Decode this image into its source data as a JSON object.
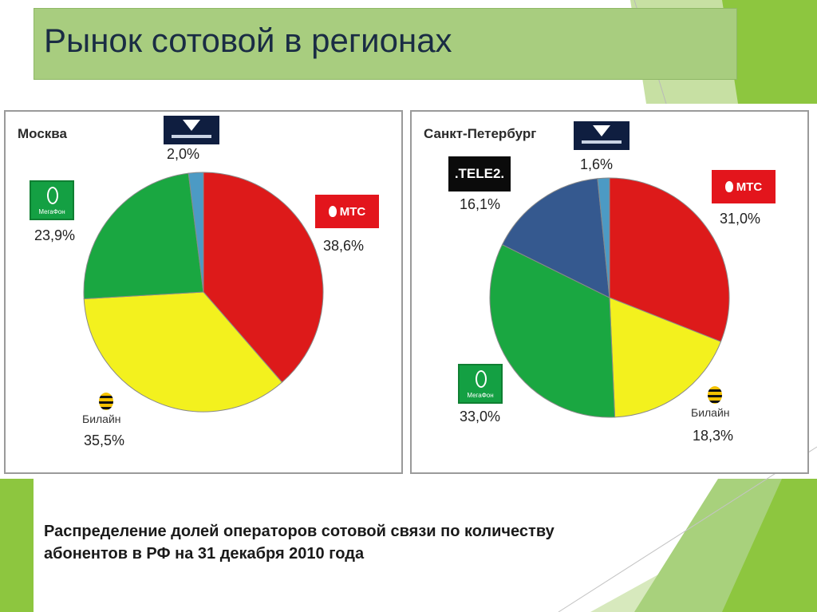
{
  "title": "Рынок сотовой в регионах",
  "caption": "Распределение долей операторов сотовой связи по количеству абонентов в РФ на 31 декабря 2010 года",
  "colors": {
    "mts": "#dd1a1a",
    "beeline": "#f3f11e",
    "megafon": "#1aa741",
    "tele2": "#35598f",
    "skylink": "#4c9ac4",
    "title_bar": "#a8cd7f",
    "accent_green": "#8dc63f"
  },
  "logos": {
    "mts": "МТС",
    "megafon": "МегаФон",
    "beeline": "Билайн",
    "tele2": ".TELE2."
  },
  "chart_data": [
    {
      "type": "pie",
      "title": "Москва",
      "categories": [
        "МТС",
        "Билайн",
        "МегаФон",
        "Скай Линк"
      ],
      "values": [
        38.6,
        35.5,
        23.9,
        2.0
      ],
      "labels": [
        "38,6%",
        "35,5%",
        "23,9%",
        "2,0%"
      ],
      "start": "12 o'clock, clockwise"
    },
    {
      "type": "pie",
      "title": "Санкт-Петербург",
      "categories": [
        "МТС",
        "Билайн",
        "МегаФон",
        "TELE2",
        "Скай Линк"
      ],
      "values": [
        31.0,
        18.3,
        33.0,
        16.1,
        1.6
      ],
      "labels": [
        "31,0%",
        "18,3%",
        "33,0%",
        "16,1%",
        "1,6%"
      ],
      "start": "12 o'clock, clockwise"
    }
  ]
}
